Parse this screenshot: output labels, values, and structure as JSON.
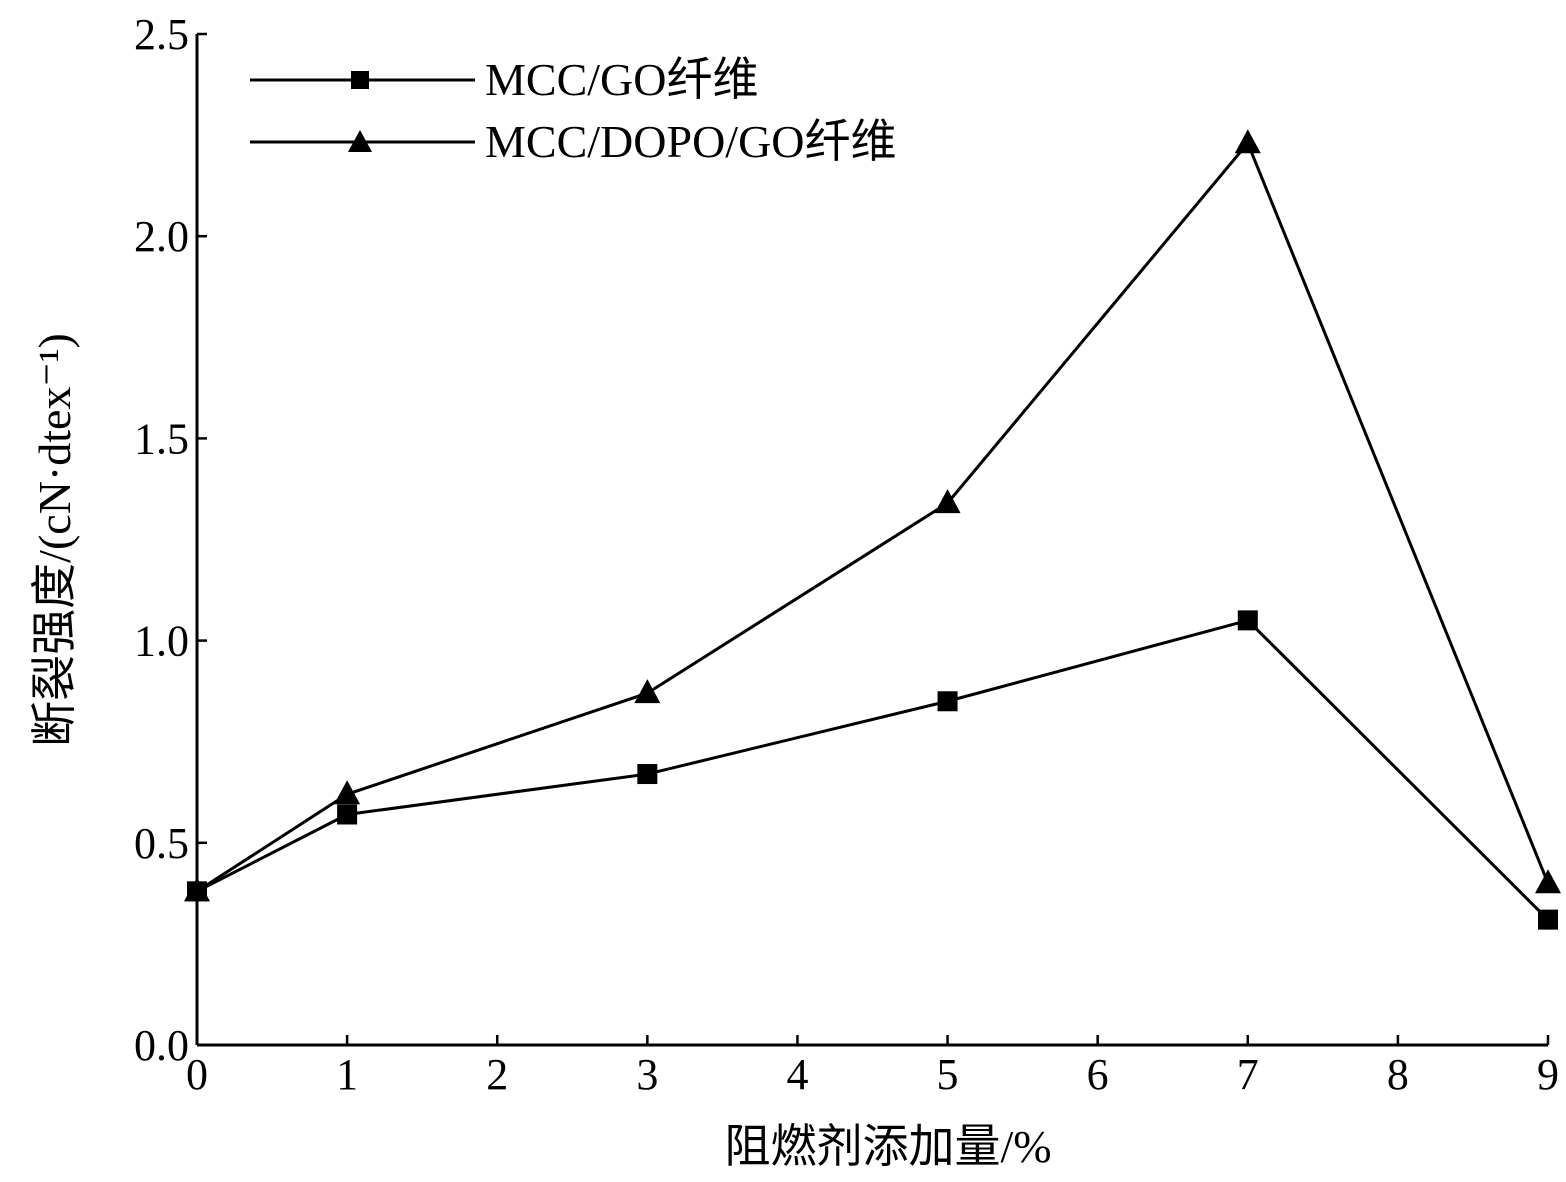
{
  "chart_data": {
    "type": "line",
    "title": "",
    "xlabel": "阻燃剂添加量/%",
    "ylabel": "断裂强度/(cN·dtex⁻¹)",
    "xlim": [
      0,
      9
    ],
    "ylim": [
      0,
      2.5
    ],
    "xticks": [
      "0",
      "1",
      "2",
      "3",
      "4",
      "5",
      "6",
      "7",
      "8",
      "9"
    ],
    "yticks": [
      "0.0",
      "0.5",
      "1.0",
      "1.5",
      "2.0",
      "2.5"
    ],
    "grid": false,
    "legend_position": "top-left",
    "x": [
      0,
      1,
      3,
      5,
      7,
      9
    ],
    "series": [
      {
        "name": "MCC/GO纤维",
        "marker": "square",
        "values": [
          0.38,
          0.57,
          0.67,
          0.85,
          1.05,
          0.31
        ]
      },
      {
        "name": "MCC/DOPO/GO纤维",
        "marker": "triangle",
        "values": [
          0.38,
          0.62,
          0.87,
          1.34,
          2.23,
          0.4
        ]
      }
    ],
    "color": "#000000"
  }
}
